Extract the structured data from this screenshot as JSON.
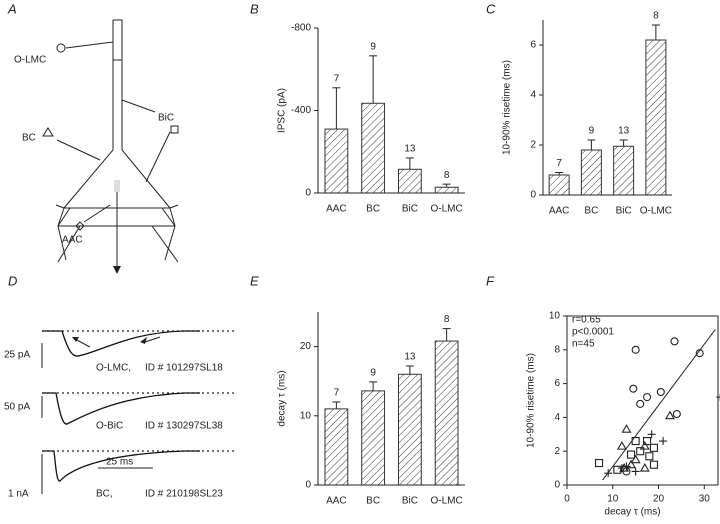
{
  "panels": {
    "A": {
      "letter": "A",
      "labels": [
        "O-LMC",
        "BiC",
        "BC",
        "AAC"
      ]
    },
    "D": {
      "letter": "D",
      "labels": [
        "25 pA",
        "O-LMC,",
        "ID # 101297SL18",
        "50 pA",
        "O-BiC",
        "ID # 130297SL38",
        "25 ms",
        "1 nA",
        "BC,",
        "ID # 210198SL23"
      ]
    }
  },
  "chart_data": [
    {
      "type": "bar",
      "letter": "B",
      "ylabel": "IPSC (pA)",
      "categories": [
        "AAC",
        "BC",
        "BiC",
        "O-LMC"
      ],
      "values": [
        -310,
        -435,
        -115,
        -28
      ],
      "errors": [
        200,
        230,
        55,
        15
      ],
      "n_labels": [
        "7",
        "9",
        "13",
        "8"
      ],
      "ylim": [
        0,
        -800
      ],
      "yticks": [
        -800,
        -400,
        0
      ],
      "color": "#333333"
    },
    {
      "type": "bar",
      "letter": "C",
      "ylabel": "10-90% risetime (ms)",
      "categories": [
        "AAC",
        "BC",
        "BiC",
        "O-LMC"
      ],
      "values": [
        0.8,
        1.8,
        1.95,
        6.2
      ],
      "errors": [
        0.1,
        0.4,
        0.25,
        0.6
      ],
      "n_labels": [
        "7",
        "9",
        "13",
        "8"
      ],
      "ylim": [
        0,
        7
      ],
      "yticks": [
        0,
        2,
        4,
        6
      ],
      "color": "#333333"
    },
    {
      "type": "bar",
      "letter": "E",
      "ylabel": "decay τ (ms)",
      "categories": [
        "AAC",
        "BC",
        "BiC",
        "O-LMC"
      ],
      "values": [
        11,
        13.6,
        16,
        20.8
      ],
      "errors": [
        1,
        1.3,
        1.2,
        1.8
      ],
      "n_labels": [
        "7",
        "9",
        "13",
        "8"
      ],
      "ylim": [
        0,
        25
      ],
      "yticks": [
        0,
        10,
        20
      ],
      "color": "#333333"
    },
    {
      "type": "scatter",
      "letter": "F",
      "xlabel": "decay τ (ms)",
      "ylabel": "10-90% risetime (ms)",
      "annotations": [
        "r=0.65",
        "p<0.0001",
        "n=45"
      ],
      "xlim": [
        0,
        33
      ],
      "ylim": [
        0,
        10
      ],
      "xticks": [
        0,
        10,
        20,
        30
      ],
      "yticks": [
        0,
        2,
        4,
        6,
        8,
        10
      ],
      "fit": {
        "x": [
          7.8,
          32.4
        ],
        "y": [
          0.3,
          9.2
        ]
      },
      "series": [
        {
          "marker": "circle",
          "color": "#222222",
          "x": [
            15,
            23.5,
            29,
            14.5,
            20.5,
            17.5,
            16,
            24,
            13
          ],
          "values": [
            8,
            8.5,
            7.8,
            5.7,
            5.5,
            5.2,
            4.8,
            4.2,
            0.8
          ]
        },
        {
          "marker": "triangle",
          "color": "#222222",
          "x": [
            13,
            22.5,
            17,
            12,
            15,
            14,
            17,
            12.5
          ],
          "values": [
            3.3,
            4.1,
            2.3,
            2.3,
            1.5,
            1.2,
            1,
            1
          ]
        },
        {
          "marker": "square",
          "color": "#222222",
          "x": [
            7,
            15,
            17.5,
            18,
            19,
            16,
            11,
            14,
            19
          ],
          "values": [
            1.3,
            2.6,
            2.6,
            1.7,
            1.2,
            2,
            0.9,
            1.8,
            2.2
          ]
        },
        {
          "marker": "plus",
          "color": "#222222",
          "x": [
            33.5,
            21,
            18.5,
            9,
            12,
            13,
            15
          ],
          "values": [
            5.2,
            2.6,
            3,
            0.7,
            1,
            1.1,
            0.8
          ]
        }
      ]
    }
  ]
}
